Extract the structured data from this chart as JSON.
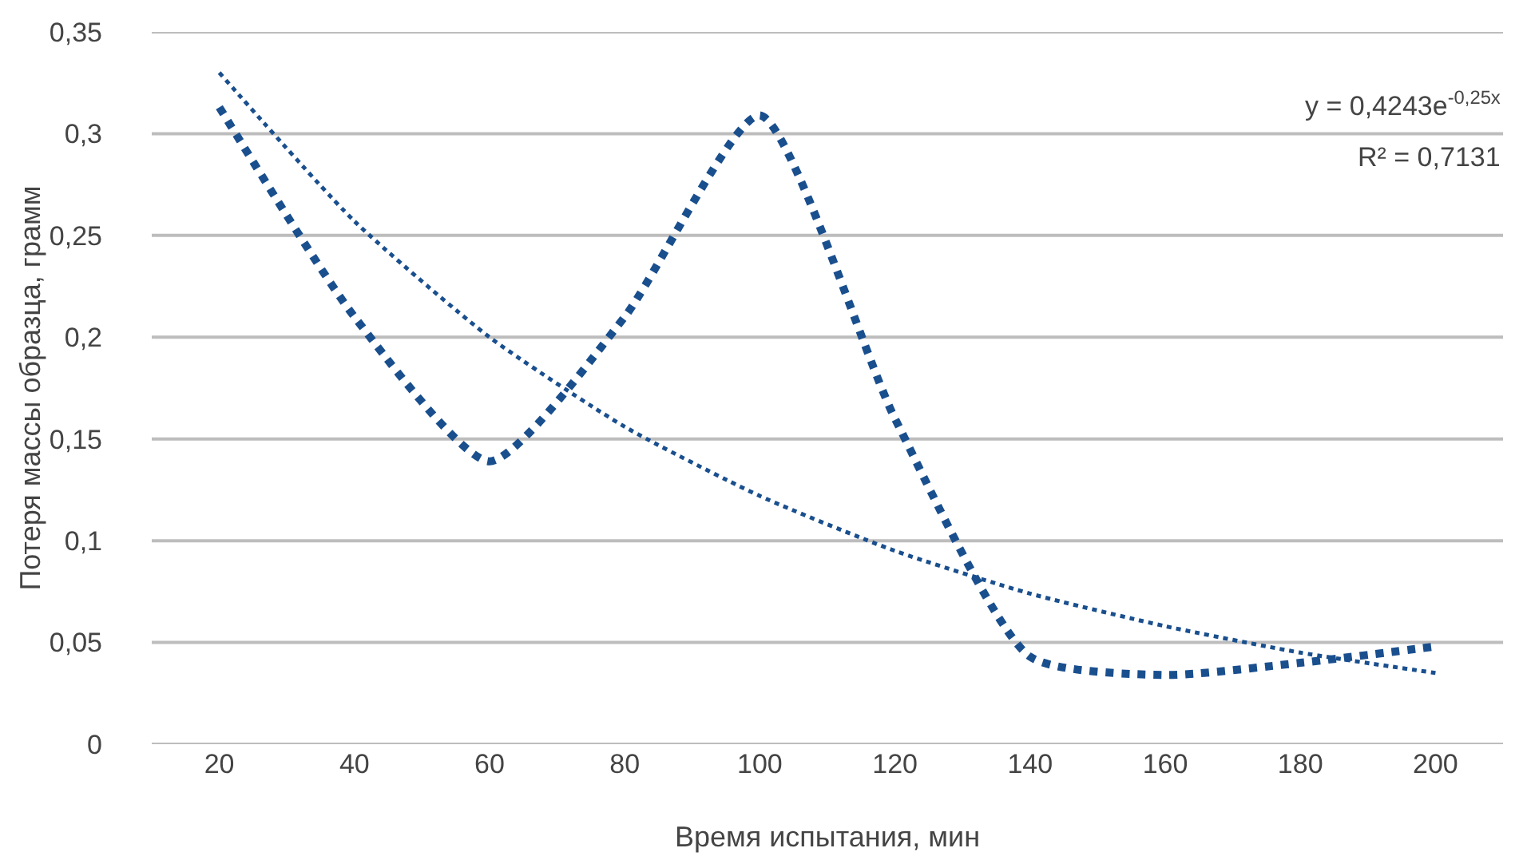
{
  "chart_data": {
    "type": "line",
    "xlabel": "Время испытания, мин",
    "ylabel": "Потеря массы образца, грамм",
    "categories": [
      "20",
      "40",
      "60",
      "80",
      "100",
      "120",
      "140",
      "160",
      "180",
      "200"
    ],
    "series": [
      {
        "color": "#1a4f8e",
        "values": [
          0.313,
          0.21,
          0.139,
          0.21,
          0.309,
          0.16,
          0.043,
          0.034,
          0.04,
          0.048
        ],
        "line_style": "dotted"
      },
      {
        "type": "line",
        "color": "#1a4f8e",
        "values": [
          0.33,
          0.257,
          0.2,
          0.156,
          0.122,
          0.095,
          0.074,
          0.058,
          0.045,
          0.035
        ],
        "line_style": "dotted"
      }
    ],
    "ylim": [
      0,
      0.35
    ],
    "yticks": [
      {
        "value": 0,
        "label": "0"
      },
      {
        "value": 0.05,
        "label": "0,05"
      },
      {
        "value": 0.1,
        "label": "0,1"
      },
      {
        "value": 0.15,
        "label": "0,15"
      },
      {
        "value": 0.2,
        "label": "0,2"
      },
      {
        "value": 0.25,
        "label": "0,25"
      },
      {
        "value": 0.3,
        "label": "0,3"
      },
      {
        "value": 0.35,
        "label": "0,35"
      }
    ],
    "grid": "y",
    "marker": "none",
    "annotations": [
      "y = 0,4243e$^{-0,25x}$",
      "R² = 0,7131"
    ]
  }
}
